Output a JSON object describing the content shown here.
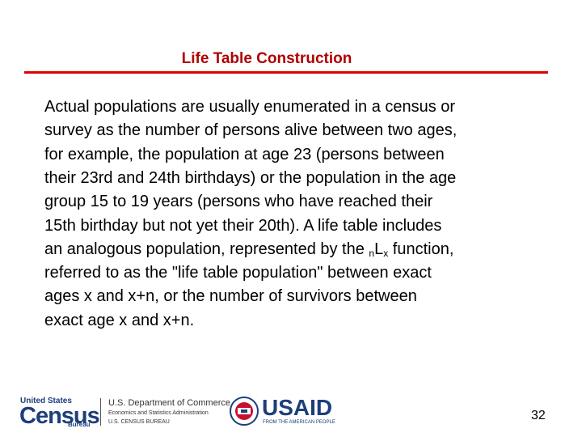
{
  "slide": {
    "title": "Life Table Construction",
    "body": {
      "lines": [
        "Actual populations are usually enumerated in a census or",
        "survey as the number of persons alive between two ages,",
        "for example, the population at age 23 (persons between",
        "their 23rd and 24th birthdays) or the population in the age",
        "group 15 to 19 years (persons who have reached their",
        "15th birthday but not yet their 20th).  A life table includes"
      ],
      "line_with_function": {
        "before": "an analogous population, represented by the ",
        "prefix_subscript": "n",
        "symbol": "L",
        "suffix_subscript": "x",
        "after": " function,"
      },
      "closing_lines": [
        "referred to as the \"life table population\" between exact",
        "ages x and x+n, or the number of survivors between",
        "exact age x and x+n."
      ]
    },
    "footer": {
      "census_logo": {
        "top": "United States",
        "main": "Census",
        "bottom": "Bureau"
      },
      "commerce": [
        "U.S. Department of Commerce",
        "Economics and Statistics Administration",
        "U.S. CENSUS BUREAU"
      ],
      "usaid": {
        "main": "USAID",
        "tagline": "FROM THE AMERICAN PEOPLE"
      },
      "page_number": "32"
    }
  }
}
